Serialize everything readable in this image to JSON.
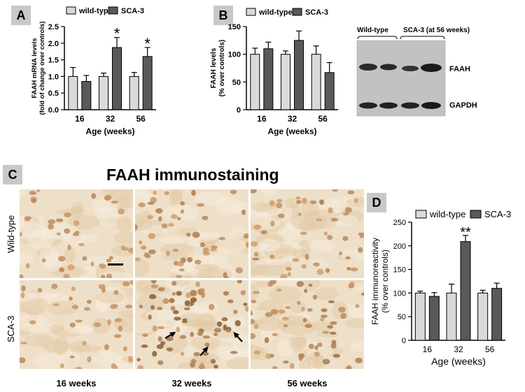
{
  "panel_letters": [
    "A",
    "B",
    "C",
    "D"
  ],
  "chart_data": [
    {
      "panel": "A",
      "type": "bar",
      "categories": [
        "16",
        "32",
        "56"
      ],
      "series": [
        {
          "name": "wild-type",
          "values": [
            1.0,
            1.0,
            1.0
          ],
          "errors": [
            0.27,
            0.1,
            0.12
          ],
          "color": "#d9d9d9"
        },
        {
          "name": "SCA-3",
          "values": [
            0.85,
            1.87,
            1.6
          ],
          "errors": [
            0.18,
            0.3,
            0.27
          ],
          "color": "#595959"
        }
      ],
      "ylabel": "FAAH mRNA levels (fold of change over controls)",
      "xlabel": "Age (weeks)",
      "ylim": [
        0,
        2.5
      ],
      "yticks": [
        "0.0",
        "0.5",
        "1.0",
        "1.5",
        "2.0",
        "2.5"
      ],
      "significance": [
        "",
        "*",
        "*"
      ]
    },
    {
      "panel": "B",
      "type": "bar",
      "categories": [
        "16",
        "32",
        "56"
      ],
      "series": [
        {
          "name": "wild-type",
          "values": [
            100,
            100,
            100
          ],
          "errors": [
            11,
            6,
            15
          ],
          "color": "#d9d9d9"
        },
        {
          "name": "SCA-3",
          "values": [
            110,
            125,
            67
          ],
          "errors": [
            12,
            17,
            18
          ],
          "color": "#595959"
        }
      ],
      "ylabel": "FAAH levels (% over controls)",
      "xlabel": "Age (weeks)",
      "ylim": [
        0,
        150
      ],
      "yticks": [
        "0",
        "50",
        "100",
        "150"
      ],
      "significance": [
        "",
        "",
        ""
      ]
    },
    {
      "panel": "D",
      "type": "bar",
      "categories": [
        "16",
        "32",
        "56"
      ],
      "series": [
        {
          "name": "wild-type",
          "values": [
            100,
            100,
            100
          ],
          "errors": [
            4,
            19,
            6
          ],
          "color": "#d9d9d9"
        },
        {
          "name": "SCA-3",
          "values": [
            93,
            209,
            110
          ],
          "errors": [
            8,
            13,
            11
          ],
          "color": "#595959"
        }
      ],
      "ylabel": "FAAH immunoreactivity (% over controls)",
      "xlabel": "Age (weeks)",
      "ylim": [
        0,
        250
      ],
      "yticks": [
        "0",
        "50",
        "100",
        "150",
        "200",
        "250"
      ],
      "significance": [
        "",
        "**",
        ""
      ]
    }
  ],
  "blot": {
    "group_wt": "Wild-type",
    "group_sca": "SCA-3 (at 56 weeks)",
    "band_top": "FAAH",
    "band_bottom": "GAPDH"
  },
  "immunostaining": {
    "title": "FAAH immunostaining",
    "rows": [
      "Wild-type",
      "SCA-3"
    ],
    "columns": [
      "16 weeks",
      "32 weeks",
      "56 weeks"
    ]
  }
}
